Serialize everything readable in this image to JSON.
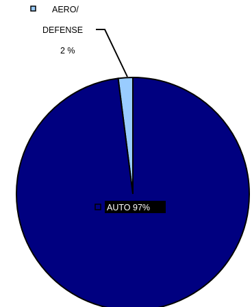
{
  "chart_data": {
    "type": "pie",
    "slices": [
      {
        "label": "AERO/ DEFENSE",
        "label_lines": [
          "AERO/",
          "DEFENSE"
        ],
        "pct_text": "2 %",
        "value": 2,
        "color": "#99ccff"
      },
      {
        "label": "AUTO",
        "label_lines": [
          "AUTO"
        ],
        "pct_text": "97%",
        "value": 97,
        "color": "#000080"
      }
    ],
    "start_angle_deg": 0,
    "direction": "counterclockwise",
    "data_labels": "inside-with-legend-key"
  }
}
